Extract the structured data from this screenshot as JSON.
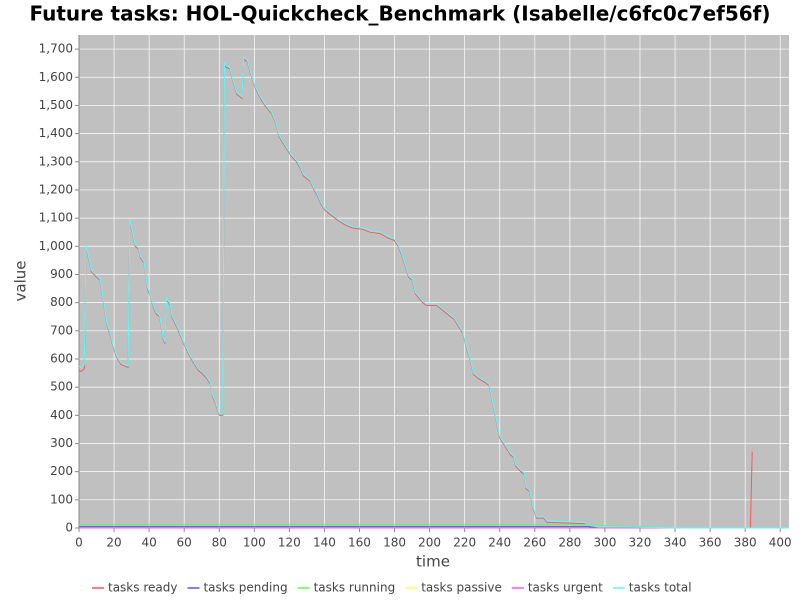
{
  "chart_data": {
    "type": "line",
    "title": "Future tasks: HOL-Quickcheck_Benchmark (Isabelle/c6fc0c7ef56f)",
    "x_label": "time",
    "y_label": "value",
    "xlim": [
      0,
      405
    ],
    "ylim": [
      0,
      1750
    ],
    "xticks": [
      0,
      20,
      40,
      60,
      80,
      100,
      120,
      140,
      160,
      180,
      200,
      220,
      240,
      260,
      280,
      300,
      320,
      340,
      360,
      380,
      400
    ],
    "yticks": [
      0,
      100,
      200,
      300,
      400,
      500,
      600,
      700,
      800,
      900,
      {
        "value": 1000,
        "label": "1,000"
      },
      {
        "value": 1100,
        "label": "1,100"
      },
      {
        "value": 1200,
        "label": "1,200"
      },
      {
        "value": 1300,
        "label": "1,300"
      },
      {
        "value": 1400,
        "label": "1,400"
      },
      {
        "value": 1500,
        "label": "1,500"
      },
      {
        "value": 1600,
        "label": "1,600"
      },
      {
        "value": 1700,
        "label": "1,700"
      }
    ],
    "grid": true,
    "legend": "bottom",
    "series": [
      {
        "name": "tasks ready",
        "color": "#ff5555",
        "x": [
          0,
          1,
          3,
          4,
          5,
          7,
          10,
          12,
          14,
          16,
          18,
          20,
          22,
          24,
          28,
          29,
          30,
          32,
          34,
          35,
          37,
          39,
          41,
          42,
          44,
          46,
          48,
          49,
          50,
          52,
          53,
          56,
          58,
          60,
          62,
          64,
          66,
          68,
          70,
          73,
          75,
          76,
          78,
          80,
          82,
          83,
          84,
          86,
          88,
          90,
          93,
          94,
          96,
          98,
          100,
          103,
          106,
          110,
          112,
          114,
          118,
          121,
          124,
          126,
          128,
          132,
          134,
          136,
          138,
          140,
          144,
          148,
          152,
          156,
          162,
          166,
          172,
          176,
          180,
          182,
          184,
          186,
          188,
          190,
          192,
          196,
          198,
          204,
          210,
          214,
          216,
          219,
          221,
          223,
          225,
          228,
          232,
          234,
          236,
          238,
          240,
          242,
          244,
          246,
          248,
          249,
          252,
          254,
          255,
          257,
          259,
          261,
          265,
          267,
          290,
          292,
          296,
          383,
          384
        ],
        "values": [
          560,
          555,
          565,
          1000,
          970,
          910,
          890,
          880,
          800,
          720,
          680,
          630,
          600,
          580,
          570,
          1090,
          1060,
          1000,
          990,
          960,
          940,
          850,
          820,
          790,
          760,
          750,
          670,
          655,
          810,
          790,
          750,
          710,
          680,
          650,
          625,
          600,
          580,
          560,
          550,
          530,
          510,
          470,
          440,
          400,
          400,
          1645,
          1635,
          1630,
          1580,
          1540,
          1525,
          1665,
          1655,
          1610,
          1570,
          1530,
          1500,
          1470,
          1440,
          1390,
          1350,
          1320,
          1300,
          1280,
          1250,
          1230,
          1200,
          1180,
          1150,
          1130,
          1110,
          1090,
          1075,
          1065,
          1060,
          1050,
          1045,
          1030,
          1020,
          1000,
          970,
          930,
          890,
          880,
          830,
          800,
          790,
          790,
          760,
          740,
          720,
          690,
          640,
          600,
          545,
          530,
          515,
          505,
          440,
          380,
          320,
          300,
          280,
          260,
          250,
          220,
          200,
          190,
          140,
          130,
          70,
          35,
          35,
          20,
          15,
          5,
          0,
          0,
          270
        ]
      },
      {
        "name": "tasks pending",
        "color": "#5555ff",
        "x": [
          0,
          290,
          296,
          405
        ],
        "values": [
          5,
          5,
          0,
          0
        ]
      },
      {
        "name": "tasks running",
        "color": "#55ff55",
        "x": [
          0,
          290,
          300,
          320,
          340,
          405
        ],
        "values": [
          12,
          12,
          8,
          5,
          0,
          0
        ]
      },
      {
        "name": "tasks passive",
        "color": "#ffff55",
        "x": [
          0,
          405
        ],
        "values": [
          0,
          0
        ]
      },
      {
        "name": "tasks urgent",
        "color": "#ff55ff",
        "x": [
          0,
          405
        ],
        "values": [
          0,
          0
        ]
      },
      {
        "name": "tasks total",
        "color": "#55ffff",
        "x": [
          0,
          1,
          3,
          4,
          5,
          7,
          10,
          12,
          14,
          16,
          18,
          20,
          22,
          24,
          28,
          29,
          30,
          32,
          34,
          35,
          37,
          39,
          41,
          42,
          44,
          46,
          48,
          49,
          50,
          52,
          53,
          56,
          58,
          60,
          62,
          64,
          66,
          68,
          70,
          73,
          75,
          76,
          78,
          80,
          82,
          83,
          84,
          86,
          88,
          90,
          93,
          94,
          96,
          98,
          100,
          103,
          106,
          110,
          112,
          114,
          118,
          121,
          124,
          126,
          128,
          132,
          134,
          136,
          138,
          140,
          144,
          148,
          152,
          156,
          162,
          166,
          172,
          176,
          180,
          182,
          184,
          186,
          188,
          190,
          192,
          196,
          198,
          204,
          210,
          214,
          216,
          219,
          221,
          223,
          225,
          228,
          232,
          234,
          236,
          238,
          240,
          242,
          244,
          246,
          248,
          249,
          252,
          254,
          255,
          257,
          259,
          261,
          265,
          267,
          288,
          292,
          300,
          320,
          340,
          405
        ],
        "values": [
          575,
          570,
          580,
          1005,
          975,
          915,
          895,
          885,
          805,
          725,
          685,
          635,
          605,
          585,
          575,
          1095,
          1065,
          1005,
          995,
          965,
          945,
          855,
          825,
          795,
          765,
          755,
          675,
          660,
          815,
          795,
          755,
          715,
          685,
          655,
          630,
          605,
          585,
          565,
          555,
          535,
          515,
          475,
          445,
          405,
          405,
          1650,
          1640,
          1635,
          1585,
          1545,
          1530,
          1670,
          1660,
          1615,
          1575,
          1535,
          1505,
          1475,
          1445,
          1395,
          1355,
          1325,
          1305,
          1285,
          1255,
          1235,
          1205,
          1185,
          1155,
          1135,
          1115,
          1095,
          1080,
          1070,
          1065,
          1055,
          1050,
          1035,
          1025,
          1005,
          975,
          935,
          895,
          885,
          835,
          805,
          795,
          795,
          765,
          745,
          725,
          695,
          645,
          605,
          550,
          535,
          520,
          510,
          445,
          385,
          325,
          305,
          285,
          265,
          255,
          225,
          205,
          195,
          145,
          135,
          75,
          40,
          40,
          25,
          20,
          8,
          5,
          3,
          0,
          0
        ]
      }
    ]
  }
}
